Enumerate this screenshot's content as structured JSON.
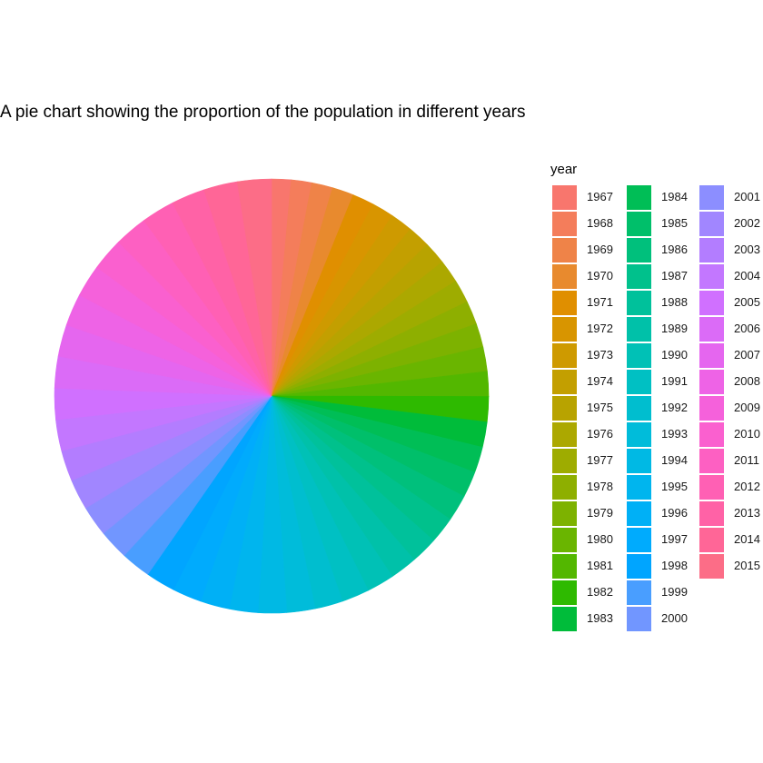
{
  "chart_data": {
    "type": "pie",
    "title": "A pie chart showing the proportion of the population in different years",
    "legend_title": "year",
    "legend_position": "right",
    "categories": [
      "1967",
      "1968",
      "1969",
      "1970",
      "1971",
      "1972",
      "1973",
      "1974",
      "1975",
      "1976",
      "1977",
      "1978",
      "1979",
      "1980",
      "1981",
      "1982",
      "1983",
      "1984",
      "1985",
      "1986",
      "1987",
      "1988",
      "1989",
      "1990",
      "1991",
      "1992",
      "1993",
      "1994",
      "1995",
      "1996",
      "1997",
      "1998",
      "1999",
      "2000",
      "2001",
      "2002",
      "2003",
      "2004",
      "2005",
      "2006",
      "2007",
      "2008",
      "2009",
      "2010",
      "2011",
      "2012",
      "2013",
      "2014",
      "2015"
    ],
    "values": [
      1.46,
      1.55,
      1.6,
      1.62,
      1.64,
      1.66,
      1.68,
      1.7,
      1.72,
      1.74,
      1.76,
      1.78,
      1.8,
      1.84,
      1.88,
      1.9,
      1.92,
      1.95,
      1.97,
      1.99,
      2.01,
      2.03,
      2.05,
      2.07,
      2.09,
      2.11,
      2.13,
      2.15,
      2.17,
      2.19,
      2.21,
      2.23,
      2.25,
      2.27,
      2.29,
      2.31,
      2.33,
      2.35,
      2.37,
      2.39,
      2.41,
      2.43,
      2.45,
      2.47,
      2.49,
      2.51,
      2.53,
      2.55,
      2.57
    ],
    "colors": [
      "#F8766D",
      "#F47D5B",
      "#EF8348",
      "#E88A2E",
      "#E08F00",
      "#D89500",
      "#CE9A00",
      "#C39F00",
      "#B8A300",
      "#ACA800",
      "#9EAC00",
      "#8EAF00",
      "#7DB200",
      "#6AB500",
      "#53B700",
      "#2EBA00",
      "#00BC3A",
      "#00BE56",
      "#00BF6A",
      "#00C07C",
      "#00C18C",
      "#00C19B",
      "#00C1A9",
      "#00C1B6",
      "#00C0C3",
      "#00BECF",
      "#00BCDA",
      "#00B9E4",
      "#00B5EE",
      "#00B0F6",
      "#00ABFD",
      "#00A5FF",
      "#499EFF",
      "#7196FF",
      "#8C8EFF",
      "#A186FF",
      "#B37DFF",
      "#C377FF",
      "#D070FF",
      "#DB6BF7",
      "#E566EF",
      "#EE63E6",
      "#F561DB",
      "#FA60CF",
      "#FD60C2",
      "#FF60B4",
      "#FF62A6",
      "#FF6697",
      "#FC6D87"
    ]
  }
}
